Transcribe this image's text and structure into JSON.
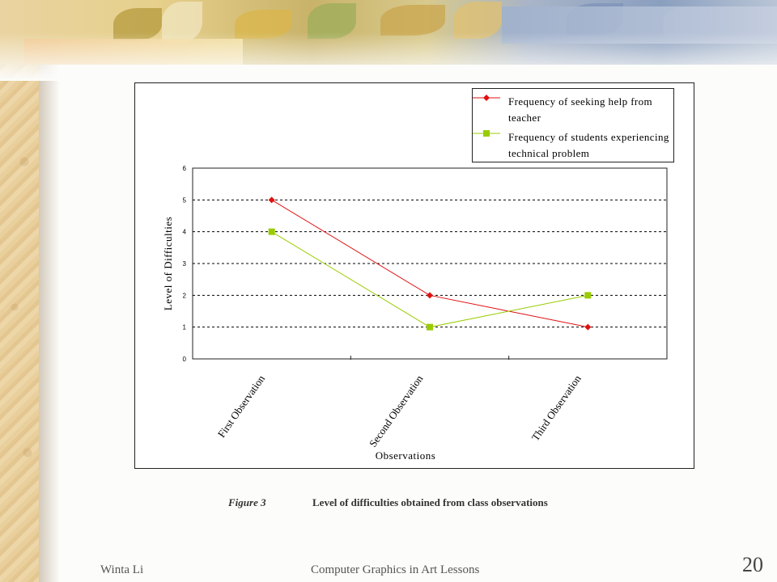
{
  "slide": {
    "footer_author": "Winta Li",
    "footer_title": "Computer Graphics in Art Lessons",
    "slide_number": "20"
  },
  "caption": {
    "label": "Figure 3",
    "text": "Level of difficulties obtained from class observations"
  },
  "colors": {
    "series_red": "#e01010",
    "series_green": "#99cc00",
    "background": "#fcfcfa"
  },
  "chart_data": {
    "type": "line",
    "categories": [
      "First Observation",
      "Second Observation",
      "Third Observation"
    ],
    "series": [
      {
        "name": "Frequency of seeking help from teacher",
        "values": [
          5,
          2,
          1
        ],
        "color": "#e01010",
        "marker": "diamond"
      },
      {
        "name": "Frequency of students experiencing technical problem",
        "values": [
          4,
          1,
          2
        ],
        "color": "#99cc00",
        "marker": "square"
      }
    ],
    "xlabel": "Observations",
    "ylabel": "Level of Difficulties",
    "ylim": [
      0,
      6
    ],
    "yticks": [
      "0",
      "1",
      "2",
      "3",
      "4",
      "5",
      "6"
    ],
    "grid": "dashed horizontal",
    "legend": "top-right"
  }
}
